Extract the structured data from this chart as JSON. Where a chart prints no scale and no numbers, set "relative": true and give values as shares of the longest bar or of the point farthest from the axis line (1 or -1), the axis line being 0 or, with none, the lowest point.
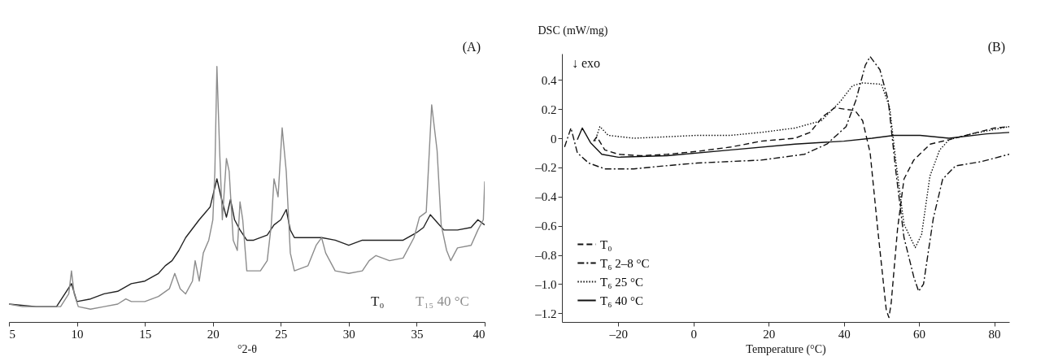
{
  "chart_data": [
    {
      "type": "line",
      "relative": true,
      "xlabel": "°2-θ",
      "xlim": [
        5,
        40
      ],
      "xticks": [
        5,
        10,
        15,
        20,
        25,
        30,
        35,
        40
      ],
      "legend": "bottom right",
      "grid": false,
      "annotations": [
        "(A)"
      ],
      "series": [
        {
          "name": "T₀",
          "color": "#222222",
          "x": [
            5,
            7,
            8.5,
            9.6,
            10,
            11,
            12,
            13,
            14,
            15,
            16,
            16.5,
            17,
            17.5,
            18,
            19,
            19.8,
            20.3,
            20.6,
            21,
            21.3,
            21.6,
            22,
            22.5,
            23,
            24,
            24.5,
            25,
            25.4,
            25.7,
            26,
            27,
            28,
            29,
            30,
            31,
            32,
            33,
            34,
            35,
            35.5,
            36,
            36.5,
            37,
            38,
            39,
            39.5,
            40
          ],
          "values": [
            0.07,
            0.06,
            0.06,
            0.15,
            0.08,
            0.09,
            0.11,
            0.12,
            0.15,
            0.16,
            0.19,
            0.22,
            0.24,
            0.28,
            0.33,
            0.4,
            0.45,
            0.56,
            0.49,
            0.41,
            0.48,
            0.4,
            0.36,
            0.32,
            0.32,
            0.34,
            0.38,
            0.4,
            0.44,
            0.36,
            0.33,
            0.33,
            0.33,
            0.32,
            0.3,
            0.32,
            0.32,
            0.32,
            0.32,
            0.35,
            0.37,
            0.42,
            0.39,
            0.36,
            0.36,
            0.37,
            0.4,
            0.38
          ]
        },
        {
          "name": "T₁₅ 40 °C",
          "color": "#8c8c8c",
          "x": [
            5,
            6,
            7,
            8,
            8.8,
            9.4,
            9.6,
            9.8,
            10.1,
            11,
            12,
            13,
            13.6,
            14,
            15,
            16,
            16.8,
            17.2,
            17.6,
            18,
            18.5,
            18.7,
            19,
            19.3,
            19.7,
            20,
            20.15,
            20.3,
            20.5,
            20.7,
            21,
            21.2,
            21.5,
            21.8,
            22,
            22.2,
            22.5,
            23,
            23.5,
            24,
            24.3,
            24.5,
            24.8,
            25.1,
            25.4,
            25.7,
            26,
            27,
            27.6,
            28,
            28.3,
            29,
            30,
            31,
            31.5,
            32,
            33,
            34,
            34.8,
            35.2,
            35.7,
            36.1,
            36.5,
            36.8,
            37.2,
            37.5,
            38,
            39,
            39.5,
            39.9,
            40
          ],
          "values": [
            0.07,
            0.06,
            0.06,
            0.06,
            0.06,
            0.11,
            0.2,
            0.11,
            0.06,
            0.05,
            0.06,
            0.07,
            0.09,
            0.08,
            0.08,
            0.1,
            0.13,
            0.19,
            0.13,
            0.11,
            0.16,
            0.24,
            0.16,
            0.27,
            0.32,
            0.4,
            0.59,
            1.0,
            0.67,
            0.4,
            0.64,
            0.59,
            0.32,
            0.28,
            0.47,
            0.4,
            0.2,
            0.2,
            0.2,
            0.24,
            0.38,
            0.56,
            0.49,
            0.76,
            0.59,
            0.27,
            0.2,
            0.22,
            0.3,
            0.33,
            0.27,
            0.2,
            0.19,
            0.2,
            0.24,
            0.26,
            0.24,
            0.25,
            0.33,
            0.41,
            0.43,
            0.85,
            0.67,
            0.38,
            0.28,
            0.24,
            0.29,
            0.3,
            0.36,
            0.4,
            0.55
          ]
        }
      ]
    },
    {
      "type": "line",
      "xlabel": "Temperature (°C)",
      "ylabel": "DSC (mW/mg)",
      "xlim": [
        -35,
        84
      ],
      "ylim": [
        -1.26,
        0.58
      ],
      "xticks": [
        {
          "value": -20,
          "label": "–20"
        },
        0,
        20,
        40,
        60,
        80
      ],
      "yticks": [
        {
          "value": -1.2,
          "label": "–1.2"
        },
        {
          "value": -1.0,
          "label": "–1.0"
        },
        {
          "value": -0.8,
          "label": "–0.8"
        },
        {
          "value": -0.6,
          "label": "–0.6"
        },
        {
          "value": -0.4,
          "label": "–0.4"
        },
        {
          "value": -0.2,
          "label": "–0.2"
        },
        0,
        0.2,
        0.4
      ],
      "legend": "bottom left",
      "grid": false,
      "annotations": [
        "(B)",
        "↓ exo"
      ],
      "series": [
        {
          "name": "T₀",
          "color": "#111111",
          "line_style": "dashed",
          "x": [
            -26.6,
            -25.7,
            -23.6,
            -20,
            -14,
            -7,
            1,
            10,
            18,
            27,
            31,
            34.5,
            37.6,
            40,
            43,
            45,
            47,
            49,
            51.3,
            52,
            52.6,
            54.3,
            56,
            58.6,
            63,
            68,
            74,
            80,
            84
          ],
          "values": [
            -0.02,
            0.01,
            -0.08,
            -0.11,
            -0.12,
            -0.11,
            -0.09,
            -0.06,
            -0.02,
            0.0,
            0.04,
            0.15,
            0.21,
            0.2,
            0.19,
            0.12,
            -0.1,
            -0.62,
            -1.18,
            -1.23,
            -1.13,
            -0.62,
            -0.28,
            -0.15,
            -0.04,
            -0.01,
            0.03,
            0.07,
            0.08
          ]
        },
        {
          "name": "T₆ 2–8 °C",
          "color": "#111111",
          "line_style": "dashdot",
          "x": [
            -34.3,
            -32.6,
            -30.9,
            -27.9,
            -23.6,
            -15.9,
            -8,
            1,
            18,
            29.5,
            35.5,
            40.6,
            43.2,
            45.7,
            47,
            49.6,
            51.8,
            53.9,
            56,
            58.6,
            59.9,
            61.2,
            63.8,
            66.3,
            69.7,
            76.6,
            84
          ],
          "values": [
            -0.06,
            0.07,
            -0.1,
            -0.17,
            -0.21,
            -0.21,
            -0.19,
            -0.17,
            -0.15,
            -0.11,
            -0.04,
            0.08,
            0.26,
            0.5,
            0.56,
            0.47,
            0.26,
            -0.24,
            -0.68,
            -0.95,
            -1.05,
            -1.0,
            -0.55,
            -0.28,
            -0.19,
            -0.16,
            -0.11
          ]
        },
        {
          "name": "T₆ 25 °C",
          "color": "#111111",
          "line_style": "dotted",
          "x": [
            -26.2,
            -24.9,
            -22.7,
            -15.9,
            -7,
            1,
            10,
            18,
            27,
            34,
            39,
            42.3,
            44.9,
            50,
            52.2,
            53.9,
            56,
            59,
            60.7,
            62.9,
            65.5,
            68,
            74,
            84
          ],
          "values": [
            -0.02,
            0.08,
            0.02,
            0.0,
            0.01,
            0.02,
            0.02,
            0.04,
            0.07,
            0.12,
            0.25,
            0.36,
            0.38,
            0.37,
            0.21,
            -0.17,
            -0.59,
            -0.75,
            -0.66,
            -0.26,
            -0.08,
            -0.01,
            0.03,
            0.08
          ]
        },
        {
          "name": "T₆ 40 °C",
          "color": "#111111",
          "line_style": "solid",
          "x": [
            -30.9,
            -29.6,
            -27.4,
            -24.4,
            -20,
            -7,
            10,
            27,
            40,
            47.5,
            53.4,
            60.3,
            68,
            78,
            84
          ],
          "values": [
            -0.01,
            0.07,
            -0.03,
            -0.11,
            -0.13,
            -0.12,
            -0.08,
            -0.04,
            -0.02,
            0.0,
            0.02,
            0.02,
            0.0,
            0.03,
            0.04
          ]
        }
      ]
    }
  ]
}
